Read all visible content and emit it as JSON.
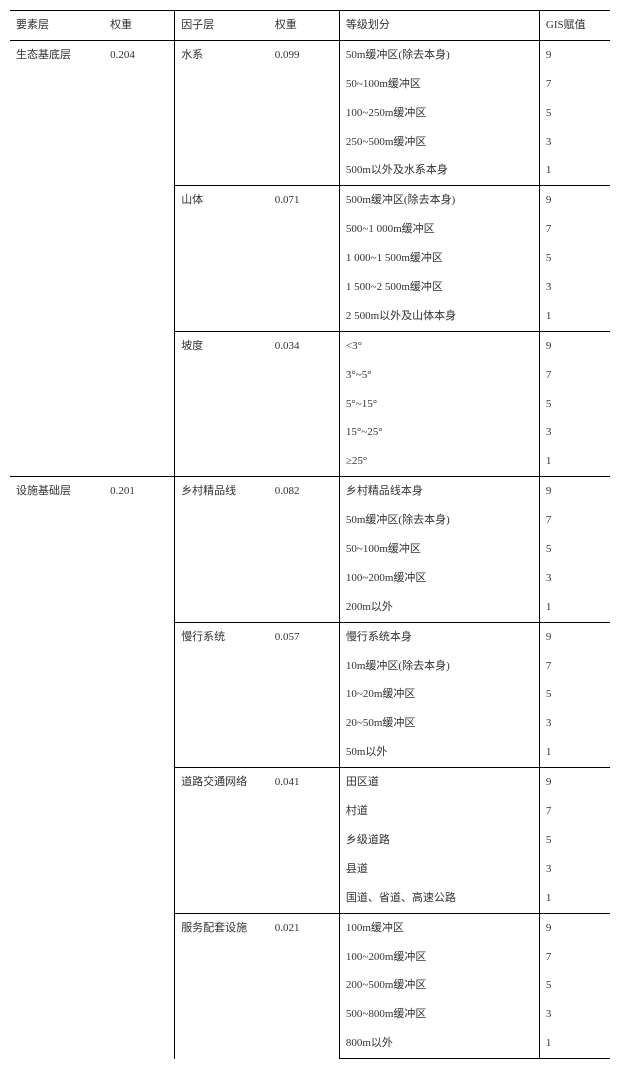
{
  "headers": [
    "要素层",
    "权重",
    "因子层",
    "权重",
    "等级划分",
    "GIS赋值"
  ],
  "colWidths": [
    "80px",
    "60px",
    "80px",
    "60px",
    "170px",
    "60px"
  ],
  "fontSize": "11px",
  "textColor": "#333333",
  "borderColor": "#000000",
  "background": "#ffffff",
  "layers": [
    {
      "name": "生态基底层",
      "weight": "0.204",
      "factors": [
        {
          "name": "水系",
          "weight": "0.099",
          "rows": [
            {
              "grade": "50m缓冲区(除去本身)",
              "gis": "9"
            },
            {
              "grade": "50~100m缓冲区",
              "gis": "7"
            },
            {
              "grade": "100~250m缓冲区",
              "gis": "5"
            },
            {
              "grade": "250~500m缓冲区",
              "gis": "3"
            },
            {
              "grade": "500m以外及水系本身",
              "gis": "1"
            }
          ]
        },
        {
          "name": "山体",
          "weight": "0.071",
          "rows": [
            {
              "grade": "500m缓冲区(除去本身)",
              "gis": "9"
            },
            {
              "grade": "500~1 000m缓冲区",
              "gis": "7"
            },
            {
              "grade": "1 000~1 500m缓冲区",
              "gis": "5"
            },
            {
              "grade": "1 500~2 500m缓冲区",
              "gis": "3"
            },
            {
              "grade": "2 500m以外及山体本身",
              "gis": "1"
            }
          ]
        },
        {
          "name": "坡度",
          "weight": "0.034",
          "rows": [
            {
              "grade": "<3°",
              "gis": "9"
            },
            {
              "grade": "3°~5°",
              "gis": "7"
            },
            {
              "grade": "5°~15°",
              "gis": "5"
            },
            {
              "grade": "15°~25°",
              "gis": "3"
            },
            {
              "grade": "≥25°",
              "gis": "1"
            }
          ]
        }
      ]
    },
    {
      "name": "设施基础层",
      "weight": "0.201",
      "factors": [
        {
          "name": "乡村精品线",
          "weight": "0.082",
          "rows": [
            {
              "grade": "乡村精品线本身",
              "gis": "9"
            },
            {
              "grade": "50m缓冲区(除去本身)",
              "gis": "7"
            },
            {
              "grade": "50~100m缓冲区",
              "gis": "5"
            },
            {
              "grade": "100~200m缓冲区",
              "gis": "3"
            },
            {
              "grade": "200m以外",
              "gis": "1"
            }
          ]
        },
        {
          "name": "慢行系统",
          "weight": "0.057",
          "rows": [
            {
              "grade": "慢行系统本身",
              "gis": "9"
            },
            {
              "grade": "10m缓冲区(除去本身)",
              "gis": "7"
            },
            {
              "grade": "10~20m缓冲区",
              "gis": "5"
            },
            {
              "grade": "20~50m缓冲区",
              "gis": "3"
            },
            {
              "grade": "50m以外",
              "gis": "1"
            }
          ]
        },
        {
          "name": "道路交通网络",
          "weight": "0.041",
          "rows": [
            {
              "grade": "田区道",
              "gis": "9"
            },
            {
              "grade": "村道",
              "gis": "7"
            },
            {
              "grade": "乡级道路",
              "gis": "5"
            },
            {
              "grade": "县道",
              "gis": "3"
            },
            {
              "grade": "国道、省道、高速公路",
              "gis": "1"
            }
          ]
        },
        {
          "name": "服务配套设施",
          "weight": "0.021",
          "rows": [
            {
              "grade": "100m缓冲区",
              "gis": "9"
            },
            {
              "grade": "100~200m缓冲区",
              "gis": "7"
            },
            {
              "grade": "200~500m缓冲区",
              "gis": "5"
            },
            {
              "grade": "500~800m缓冲区",
              "gis": "3"
            },
            {
              "grade": "800m以外",
              "gis": "1"
            }
          ]
        }
      ]
    }
  ]
}
